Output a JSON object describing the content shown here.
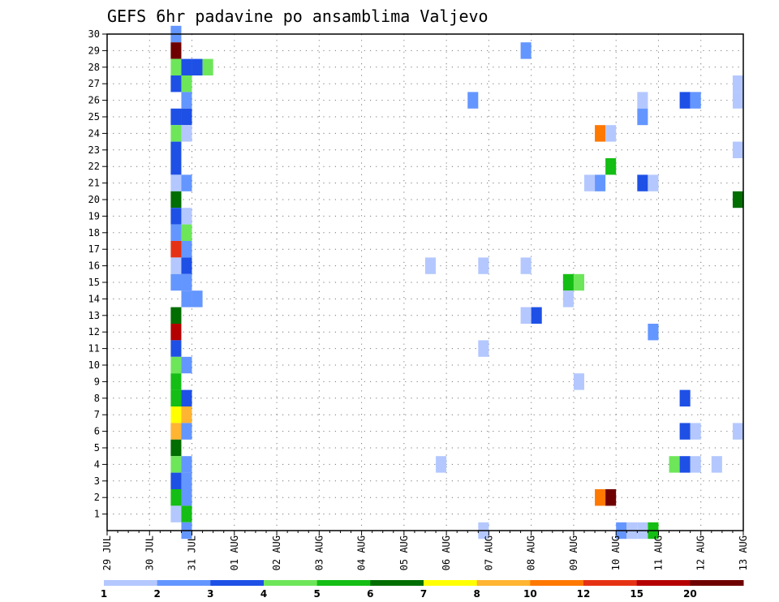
{
  "chart_data": {
    "type": "heatmap",
    "title": "GEFS 6hr padavine po ansamblima Valjevo",
    "x_tick_labels": [
      "29 JUL",
      "30 JUL",
      "31 JUL",
      "01 AUG",
      "02 AUG",
      "03 AUG",
      "04 AUG",
      "05 AUG",
      "06 AUG",
      "07 AUG",
      "08 AUG",
      "09 AUG",
      "10 AUG",
      "11 AUG",
      "12 AUG",
      "13 AUG"
    ],
    "y_tick_labels": [
      "1",
      "2",
      "3",
      "4",
      "5",
      "6",
      "7",
      "8",
      "9",
      "10",
      "11",
      "12",
      "13",
      "14",
      "15",
      "16",
      "17",
      "18",
      "19",
      "20",
      "21",
      "22",
      "23",
      "24",
      "25",
      "26",
      "27",
      "28",
      "29",
      "30"
    ],
    "x_range_days": [
      0,
      15
    ],
    "y_range": [
      0,
      30
    ],
    "grid": true,
    "colorbar": {
      "levels": [
        "1",
        "2",
        "3",
        "4",
        "5",
        "6",
        "7",
        "8",
        "10",
        "12",
        "15",
        "20"
      ],
      "colors": [
        "#b4c8ff",
        "#6496ff",
        "#1e50e6",
        "#6ee65a",
        "#14be14",
        "#006e00",
        "#ffff00",
        "#ffb432",
        "#ff7800",
        "#e63214",
        "#b40000",
        "#6e0000"
      ]
    },
    "cells": [
      {
        "x": 1.625,
        "y": 6,
        "c": 0
      },
      {
        "x": 1.625,
        "y": 30,
        "c": 1
      },
      {
        "x": 1.625,
        "y": 29,
        "c": 11
      },
      {
        "x": 1.625,
        "y": 28,
        "c": 3
      },
      {
        "x": 1.625,
        "y": 27,
        "c": 2
      },
      {
        "x": 1.625,
        "y": 25,
        "c": 2
      },
      {
        "x": 1.625,
        "y": 24,
        "c": 3
      },
      {
        "x": 1.625,
        "y": 23,
        "c": 2
      },
      {
        "x": 1.625,
        "y": 22,
        "c": 2
      },
      {
        "x": 1.625,
        "y": 21,
        "c": 0
      },
      {
        "x": 1.625,
        "y": 20,
        "c": 5
      },
      {
        "x": 1.625,
        "y": 19,
        "c": 2
      },
      {
        "x": 1.625,
        "y": 18,
        "c": 1
      },
      {
        "x": 1.625,
        "y": 17,
        "c": 9
      },
      {
        "x": 1.625,
        "y": 16,
        "c": 0
      },
      {
        "x": 1.625,
        "y": 15,
        "c": 1
      },
      {
        "x": 1.625,
        "y": 13,
        "c": 5
      },
      {
        "x": 1.625,
        "y": 12,
        "c": 10
      },
      {
        "x": 1.625,
        "y": 11,
        "c": 2
      },
      {
        "x": 1.625,
        "y": 10,
        "c": 3
      },
      {
        "x": 1.625,
        "y": 9,
        "c": 4
      },
      {
        "x": 1.625,
        "y": 8,
        "c": 4
      },
      {
        "x": 1.625,
        "y": 7,
        "c": 6
      },
      {
        "x": 1.625,
        "y": 6,
        "c": 7
      },
      {
        "x": 1.625,
        "y": 5,
        "c": 5
      },
      {
        "x": 1.625,
        "y": 4,
        "c": 3
      },
      {
        "x": 1.625,
        "y": 3,
        "c": 2
      },
      {
        "x": 1.625,
        "y": 2,
        "c": 4
      },
      {
        "x": 1.625,
        "y": 1,
        "c": 0
      },
      {
        "x": 1.875,
        "y": 28,
        "c": 2
      },
      {
        "x": 1.875,
        "y": 27,
        "c": 3
      },
      {
        "x": 1.875,
        "y": 26,
        "c": 1
      },
      {
        "x": 1.875,
        "y": 25,
        "c": 2
      },
      {
        "x": 1.875,
        "y": 24,
        "c": 0
      },
      {
        "x": 1.875,
        "y": 21,
        "c": 1
      },
      {
        "x": 1.875,
        "y": 19,
        "c": 0
      },
      {
        "x": 1.875,
        "y": 18,
        "c": 3
      },
      {
        "x": 1.875,
        "y": 17,
        "c": 1
      },
      {
        "x": 1.875,
        "y": 16,
        "c": 2
      },
      {
        "x": 1.875,
        "y": 15,
        "c": 1
      },
      {
        "x": 1.875,
        "y": 14,
        "c": 1
      },
      {
        "x": 1.875,
        "y": 10,
        "c": 1
      },
      {
        "x": 1.875,
        "y": 8,
        "c": 2
      },
      {
        "x": 1.875,
        "y": 7,
        "c": 7
      },
      {
        "x": 1.875,
        "y": 6,
        "c": 1
      },
      {
        "x": 1.875,
        "y": 4,
        "c": 1
      },
      {
        "x": 1.875,
        "y": 3,
        "c": 1
      },
      {
        "x": 1.875,
        "y": 2,
        "c": 1
      },
      {
        "x": 1.875,
        "y": 1,
        "c": 4
      },
      {
        "x": 1.875,
        "y": 0,
        "c": 1
      },
      {
        "x": 2.125,
        "y": 28,
        "c": 2
      },
      {
        "x": 2.125,
        "y": 14,
        "c": 1
      },
      {
        "x": 2.375,
        "y": 28,
        "c": 3
      },
      {
        "x": 7.625,
        "y": 16,
        "c": 0
      },
      {
        "x": 7.875,
        "y": 4,
        "c": 0
      },
      {
        "x": 8.625,
        "y": 26,
        "c": 1
      },
      {
        "x": 8.875,
        "y": 16,
        "c": 0
      },
      {
        "x": 8.875,
        "y": 11,
        "c": 0
      },
      {
        "x": 8.875,
        "y": 0,
        "c": 0
      },
      {
        "x": 9.875,
        "y": 29,
        "c": 1
      },
      {
        "x": 9.875,
        "y": 16,
        "c": 0
      },
      {
        "x": 9.875,
        "y": 13,
        "c": 0
      },
      {
        "x": 10.125,
        "y": 13,
        "c": 2
      },
      {
        "x": 10.875,
        "y": 15,
        "c": 4
      },
      {
        "x": 10.875,
        "y": 14,
        "c": 0
      },
      {
        "x": 11.125,
        "y": 15,
        "c": 3
      },
      {
        "x": 11.125,
        "y": 9,
        "c": 0
      },
      {
        "x": 11.375,
        "y": 21,
        "c": 0
      },
      {
        "x": 11.625,
        "y": 24,
        "c": 8
      },
      {
        "x": 11.625,
        "y": 21,
        "c": 1
      },
      {
        "x": 11.625,
        "y": 2,
        "c": 8
      },
      {
        "x": 11.875,
        "y": 24,
        "c": 0
      },
      {
        "x": 11.875,
        "y": 22,
        "c": 4
      },
      {
        "x": 11.875,
        "y": 2,
        "c": 11
      },
      {
        "x": 12.125,
        "y": 0,
        "c": 1
      },
      {
        "x": 12.375,
        "y": 0,
        "c": 0
      },
      {
        "x": 12.625,
        "y": 26,
        "c": 0
      },
      {
        "x": 12.625,
        "y": 25,
        "c": 1
      },
      {
        "x": 12.625,
        "y": 21,
        "c": 2
      },
      {
        "x": 12.625,
        "y": 0,
        "c": 0
      },
      {
        "x": 12.875,
        "y": 21,
        "c": 0
      },
      {
        "x": 12.875,
        "y": 12,
        "c": 1
      },
      {
        "x": 12.875,
        "y": 0,
        "c": 4
      },
      {
        "x": 13.375,
        "y": 4,
        "c": 3
      },
      {
        "x": 13.625,
        "y": 26,
        "c": 2
      },
      {
        "x": 13.625,
        "y": 8,
        "c": 2
      },
      {
        "x": 13.625,
        "y": 6,
        "c": 2
      },
      {
        "x": 13.625,
        "y": 4,
        "c": 2
      },
      {
        "x": 13.875,
        "y": 26,
        "c": 1
      },
      {
        "x": 13.875,
        "y": 6,
        "c": 0
      },
      {
        "x": 13.875,
        "y": 4,
        "c": 0
      },
      {
        "x": 14.375,
        "y": 4,
        "c": 0
      },
      {
        "x": 14.875,
        "y": 27,
        "c": 0
      },
      {
        "x": 14.875,
        "y": 26,
        "c": 0
      },
      {
        "x": 14.875,
        "y": 23,
        "c": 0
      },
      {
        "x": 14.875,
        "y": 20,
        "c": 5
      },
      {
        "x": 14.875,
        "y": 6,
        "c": 0
      }
    ]
  }
}
